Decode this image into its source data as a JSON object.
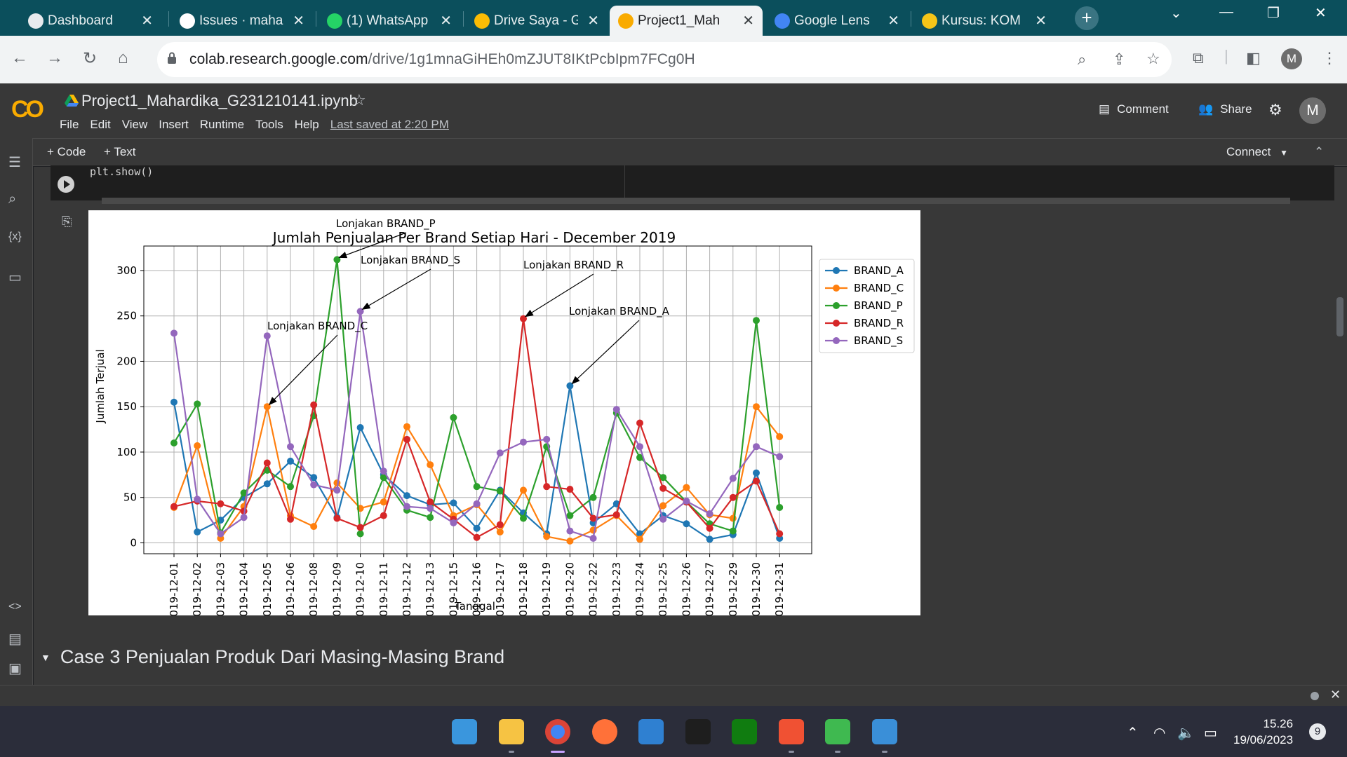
{
  "browser": {
    "tabs": [
      {
        "title": "Dashboard",
        "icon": "dashboard-favicon"
      },
      {
        "title": "Issues · maha",
        "icon": "github-favicon"
      },
      {
        "title": "(1) WhatsApp",
        "icon": "whatsapp-favicon"
      },
      {
        "title": "Drive Saya - G",
        "icon": "drive-favicon"
      },
      {
        "title": "Project1_Mah",
        "icon": "colab-favicon",
        "active": true
      },
      {
        "title": "Google Lens",
        "icon": "lens-favicon"
      },
      {
        "title": "Kursus: KOM",
        "icon": "course-favicon"
      }
    ],
    "url_host": "colab.research.google.com",
    "url_path": "/drive/1g1mnaGiHEh0mZJUT8IKtPcbIpm7FCg0H",
    "profile_initial": "M"
  },
  "colab": {
    "notebook_title": "Project1_Mahardika_G231210141.ipynb",
    "menus": [
      "File",
      "Edit",
      "View",
      "Insert",
      "Runtime",
      "Tools",
      "Help"
    ],
    "last_saved": "Last saved at 2:20 PM",
    "comment_label": "Comment",
    "share_label": "Share",
    "avatar_initial": "M",
    "add_code": "+ Code",
    "add_text": "+ Text",
    "connect_label": "Connect",
    "code_line": "plt.show()",
    "section_heading": "Case 3 Penjualan Produk Dari Masing-Masing Brand"
  },
  "chart_data": {
    "type": "line",
    "title": "Jumlah Penjualan Per Brand Setiap Hari - December 2019",
    "xlabel": "Tanggal",
    "ylabel": "Jumlah Terjual",
    "ylim": [
      -12,
      327
    ],
    "yticks": [
      0,
      50,
      100,
      150,
      200,
      250,
      300
    ],
    "grid": true,
    "legend_position": "outside-right",
    "categories": [
      "2019-12-01",
      "2019-12-02",
      "2019-12-03",
      "2019-12-04",
      "2019-12-05",
      "2019-12-06",
      "2019-12-08",
      "2019-12-09",
      "2019-12-10",
      "2019-12-11",
      "2019-12-12",
      "2019-12-13",
      "2019-12-15",
      "2019-12-16",
      "2019-12-17",
      "2019-12-18",
      "2019-12-19",
      "2019-12-20",
      "2019-12-22",
      "2019-12-23",
      "2019-12-24",
      "2019-12-25",
      "2019-12-26",
      "2019-12-27",
      "2019-12-29",
      "2019-12-30",
      "2019-12-31"
    ],
    "series": [
      {
        "name": "BRAND_A",
        "color": "#1f77b4",
        "values": [
          155,
          12,
          25,
          50,
          65,
          90,
          72,
          28,
          127,
          75,
          52,
          42,
          44,
          16,
          58,
          33,
          10,
          173,
          22,
          43,
          10,
          30,
          21,
          4,
          9,
          77,
          5
        ]
      },
      {
        "name": "BRAND_C",
        "color": "#ff7f0e",
        "values": [
          39,
          107,
          5,
          40,
          150,
          30,
          18,
          66,
          38,
          45,
          128,
          86,
          30,
          42,
          12,
          58,
          7,
          2,
          14,
          30,
          4,
          41,
          61,
          31,
          27,
          150,
          117
        ]
      },
      {
        "name": "BRAND_P",
        "color": "#2ca02c",
        "values": [
          110,
          153,
          11,
          55,
          80,
          62,
          140,
          312,
          10,
          72,
          36,
          28,
          138,
          62,
          57,
          27,
          106,
          30,
          50,
          143,
          94,
          72,
          45,
          21,
          13,
          245,
          39
        ]
      },
      {
        "name": "BRAND_R",
        "color": "#d62728",
        "values": [
          40,
          46,
          43,
          35,
          88,
          26,
          152,
          27,
          17,
          30,
          114,
          45,
          26,
          6,
          20,
          247,
          62,
          59,
          27,
          31,
          132,
          60,
          45,
          16,
          50,
          68,
          10
        ]
      },
      {
        "name": "BRAND_S",
        "color": "#9467bd",
        "values": [
          231,
          48,
          10,
          28,
          228,
          106,
          64,
          58,
          255,
          79,
          40,
          38,
          22,
          43,
          99,
          111,
          114,
          13,
          5,
          147,
          106,
          26,
          46,
          32,
          71,
          106,
          95
        ]
      }
    ],
    "annotations": [
      {
        "text": "Lonjakan BRAND_P",
        "target_category": "2019-12-09",
        "target_value": 312
      },
      {
        "text": "Lonjakan BRAND_S",
        "target_category": "2019-12-10",
        "target_value": 255
      },
      {
        "text": "Lonjakan BRAND_R",
        "target_category": "2019-12-18",
        "target_value": 247
      },
      {
        "text": "Lonjakan BRAND_A",
        "target_category": "2019-12-20",
        "target_value": 173
      },
      {
        "text": "Lonjakan BRAND_C",
        "target_category": "2019-12-05",
        "target_value": 150
      }
    ]
  },
  "taskbar": {
    "apps": [
      "windows-start-icon",
      "file-explorer-icon",
      "chrome-icon",
      "firefox-icon",
      "vscode-icon",
      "terminal-icon",
      "xbox-icon",
      "git-icon",
      "cpu-monitor-icon",
      "photos-icon"
    ],
    "time": "15.26",
    "date": "19/06/2023",
    "notification_count": "9"
  }
}
